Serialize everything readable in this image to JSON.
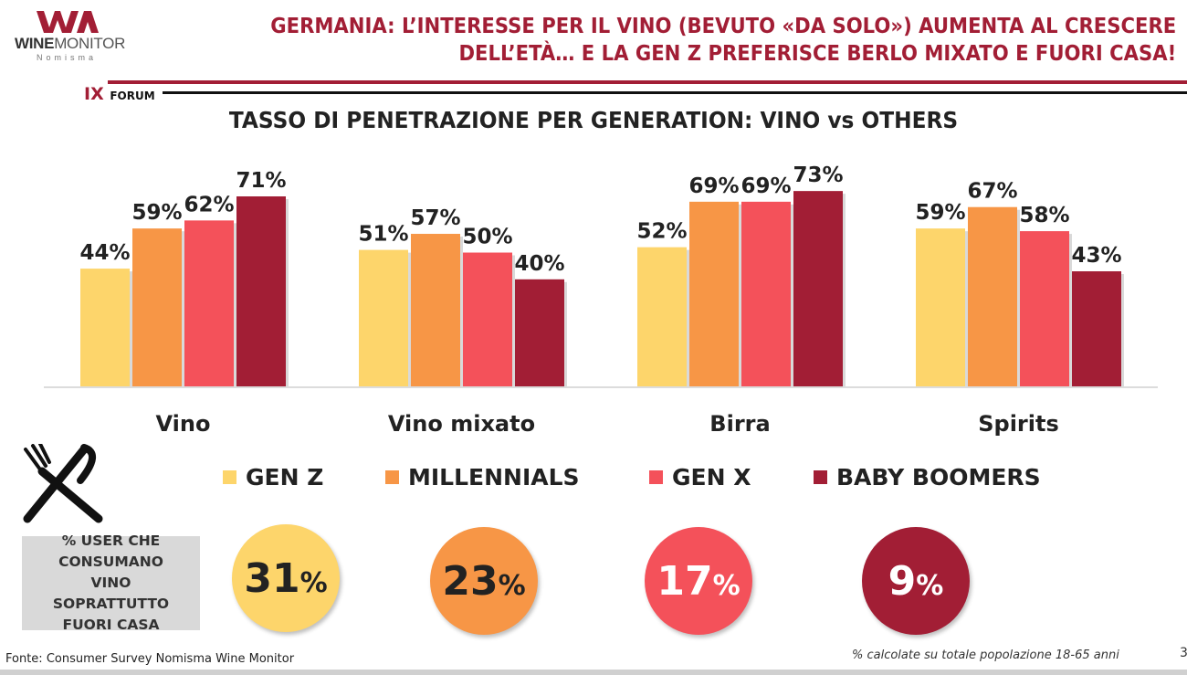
{
  "logo": {
    "brand_bold": "WINE",
    "brand_light": "MONITOR",
    "sub": "Nomisma"
  },
  "header": {
    "title_line1": "GERMANIA: L’INTERESSE PER IL VINO (BEVUTO «DA SOLO») AUMENTA AL CRESCERE",
    "title_line2": "DELL’ETÀ… E LA GEN Z PREFERISCE BERLO MIXATO E FUORI CASA!",
    "forum_num": "IX",
    "forum_label": "FORUM"
  },
  "chart_data": {
    "type": "bar",
    "title": "TASSO DI PENETRAZIONE PER GENERATION: VINO vs OTHERS",
    "categories": [
      "Vino",
      "Vino mixato",
      "Birra",
      "Spirits"
    ],
    "series": [
      {
        "name": "GEN Z",
        "color": "#FDD56B",
        "values": [
          44,
          51,
          52,
          59
        ],
        "labels": [
          "44%",
          "51%",
          "52%",
          "59%"
        ]
      },
      {
        "name": "MILLENNIALS",
        "color": "#F79646",
        "values": [
          59,
          57,
          69,
          67
        ],
        "labels": [
          "59%",
          "57%",
          "69%",
          "67%"
        ]
      },
      {
        "name": "GEN X",
        "color": "#F4515A",
        "values": [
          62,
          50,
          69,
          58
        ],
        "labels": [
          "62%",
          "50%",
          "69%",
          "58%"
        ]
      },
      {
        "name": "BABY BOOMERS",
        "color": "#A21E35",
        "values": [
          71,
          40,
          73,
          43
        ],
        "labels": [
          "71%",
          "40%",
          "73%",
          "43%"
        ]
      }
    ],
    "ylim": [
      0,
      80
    ],
    "grid": false,
    "legend": "bottom"
  },
  "out_of_home": {
    "label": "% USER CHE CONSUMANO VINO SOPRATTUTTO FUORI CASA",
    "icon": "fork-knife-icon",
    "values": [
      {
        "num": "31",
        "pct": "%",
        "color": "#FDD56B",
        "text_color": "#222"
      },
      {
        "num": "23",
        "pct": "%",
        "color": "#F79646",
        "text_color": "#222"
      },
      {
        "num": "17",
        "pct": "%",
        "color": "#F4515A",
        "text_color": "#fff"
      },
      {
        "num": "9",
        "pct": "%",
        "color": "#A21E35",
        "text_color": "#fff"
      }
    ]
  },
  "footer": {
    "source": "Fonte: Consumer Survey Nomisma Wine Monitor",
    "note": "% calcolate su totale popolazione 18-65 anni",
    "page": "3"
  }
}
